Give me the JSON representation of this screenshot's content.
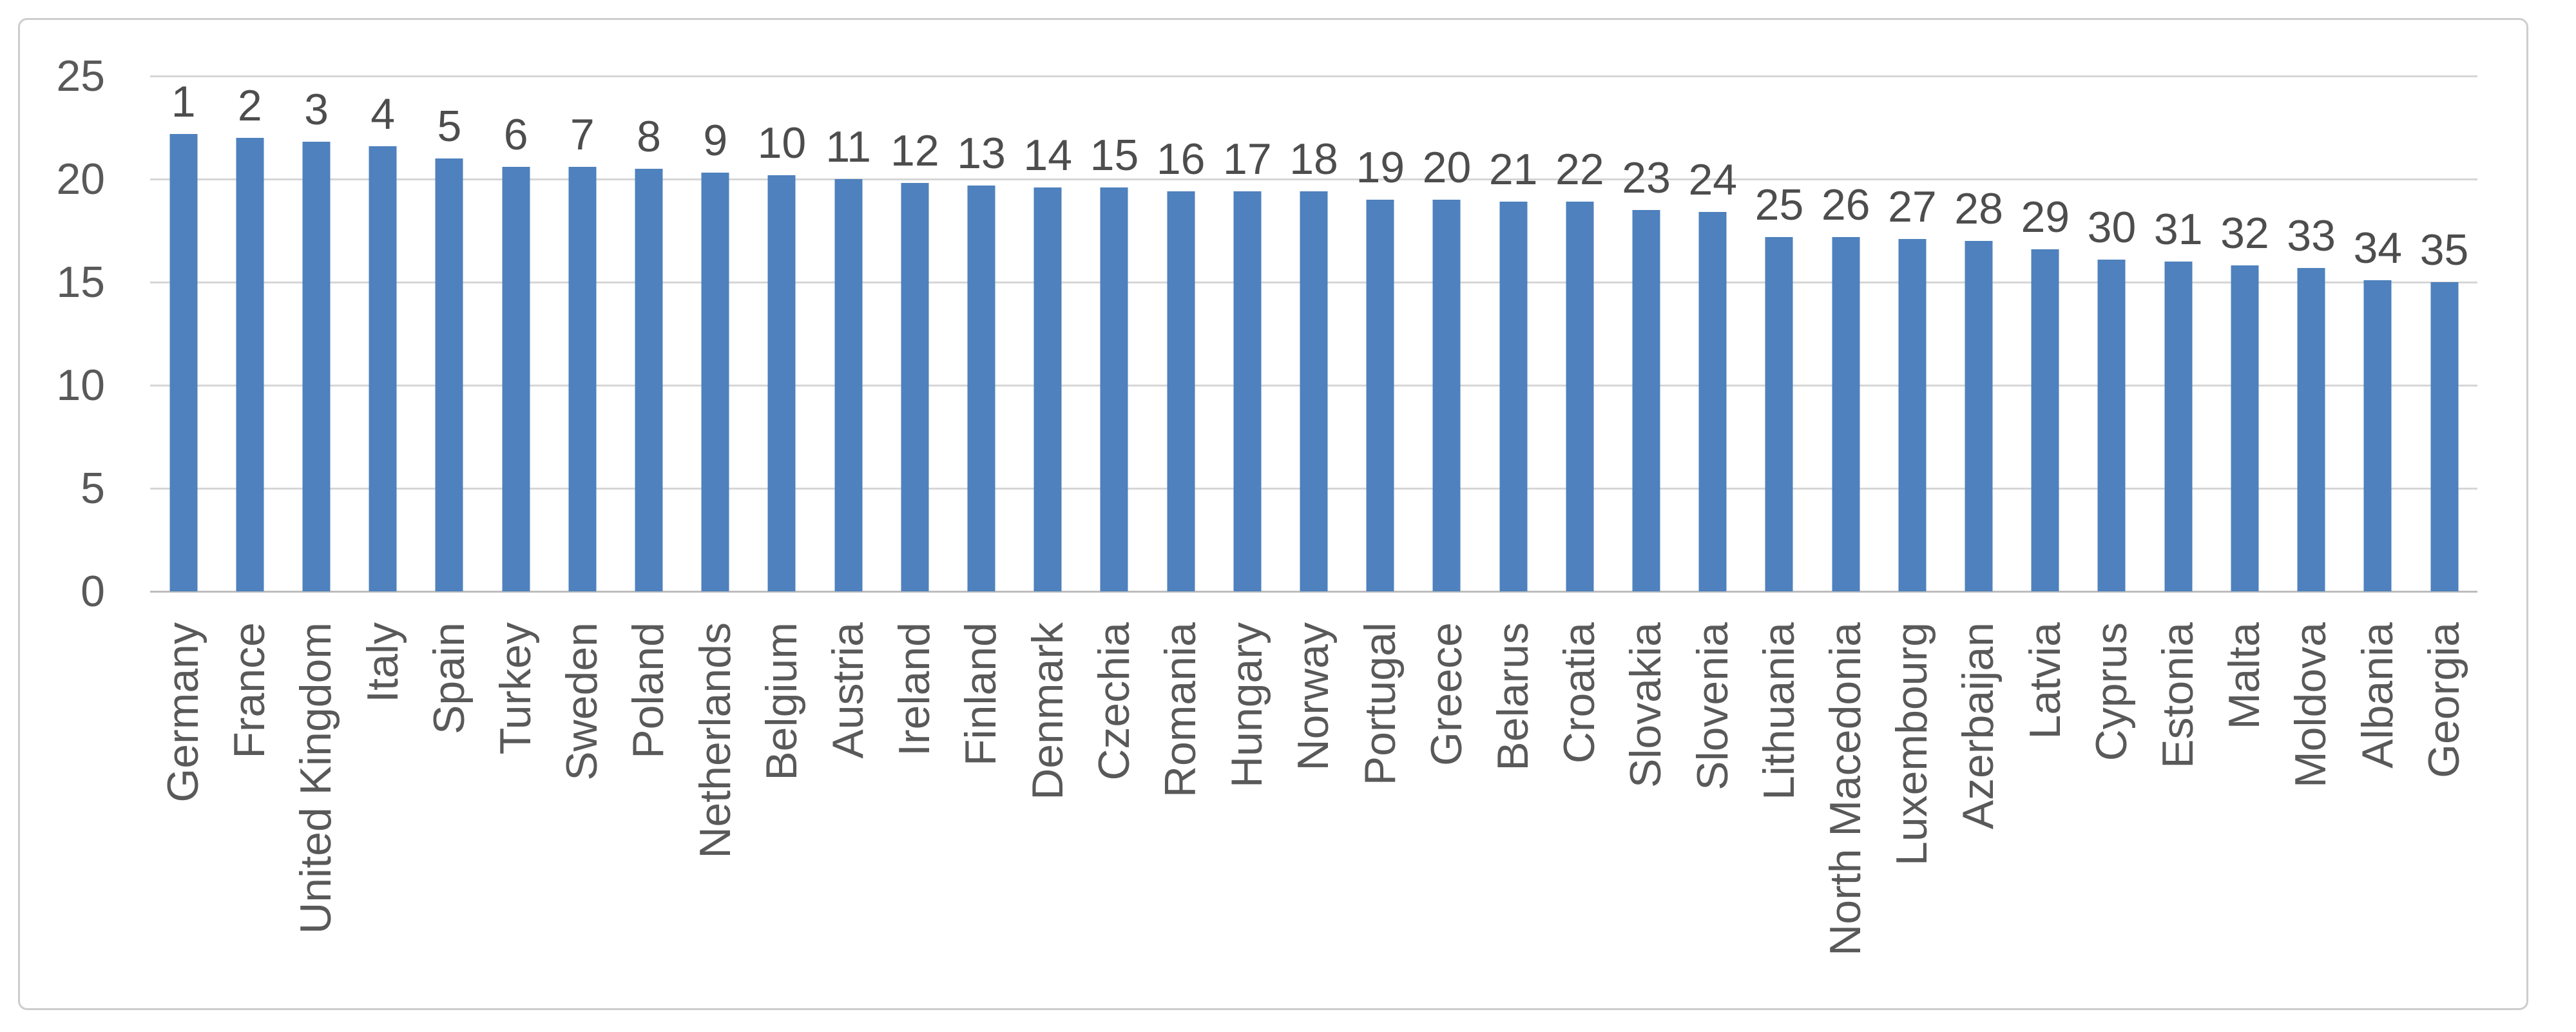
{
  "chart_data": {
    "type": "bar",
    "title": "",
    "xlabel": "",
    "ylabel": "",
    "categories": [
      "Germany",
      "France",
      "United Kingdom",
      "Italy",
      "Spain",
      "Turkey",
      "Sweden",
      "Poland",
      "Netherlands",
      "Belgium",
      "Austria",
      "Ireland",
      "Finland",
      "Denmark",
      "Czechia",
      "Romania",
      "Hungary",
      "Norway",
      "Portugal",
      "Greece",
      "Belarus",
      "Croatia",
      "Slovakia",
      "Slovenia",
      "Lithuania",
      "North Macedonia",
      "Luxembourg",
      "Azerbaijan",
      "Latvia",
      "Cyprus",
      "Estonia",
      "Malta",
      "Moldova",
      "Albania",
      "Georgia"
    ],
    "bar_labels": [
      "1",
      "2",
      "3",
      "4",
      "5",
      "6",
      "7",
      "8",
      "9",
      "10",
      "11",
      "12",
      "13",
      "14",
      "15",
      "16",
      "17",
      "18",
      "19",
      "20",
      "21",
      "22",
      "23",
      "24",
      "25",
      "26",
      "27",
      "28",
      "29",
      "30",
      "31",
      "32",
      "33",
      "34",
      "35"
    ],
    "values": [
      22.2,
      22.0,
      21.8,
      21.6,
      21.0,
      20.6,
      20.6,
      20.5,
      20.3,
      20.2,
      20.0,
      19.8,
      19.7,
      19.6,
      19.6,
      19.4,
      19.4,
      19.4,
      19.0,
      19.0,
      18.9,
      18.9,
      18.5,
      18.4,
      17.2,
      17.2,
      17.1,
      17.0,
      16.6,
      16.1,
      16.0,
      15.8,
      15.7,
      15.1,
      15.0
    ],
    "ylim": [
      0,
      25
    ],
    "yticks": [
      25,
      20,
      15,
      10,
      5,
      0
    ],
    "grid": true,
    "legend": "none",
    "colors": {
      "bar": "#4e81bd",
      "gridline": "#d6d6d6",
      "axis_line": "#bdbdbd",
      "tick_text": "#595959",
      "category_text": "#595959",
      "rank_text": "#4d4d4d",
      "frame_border": "#cdcdcd",
      "background": "#ffffff"
    }
  }
}
